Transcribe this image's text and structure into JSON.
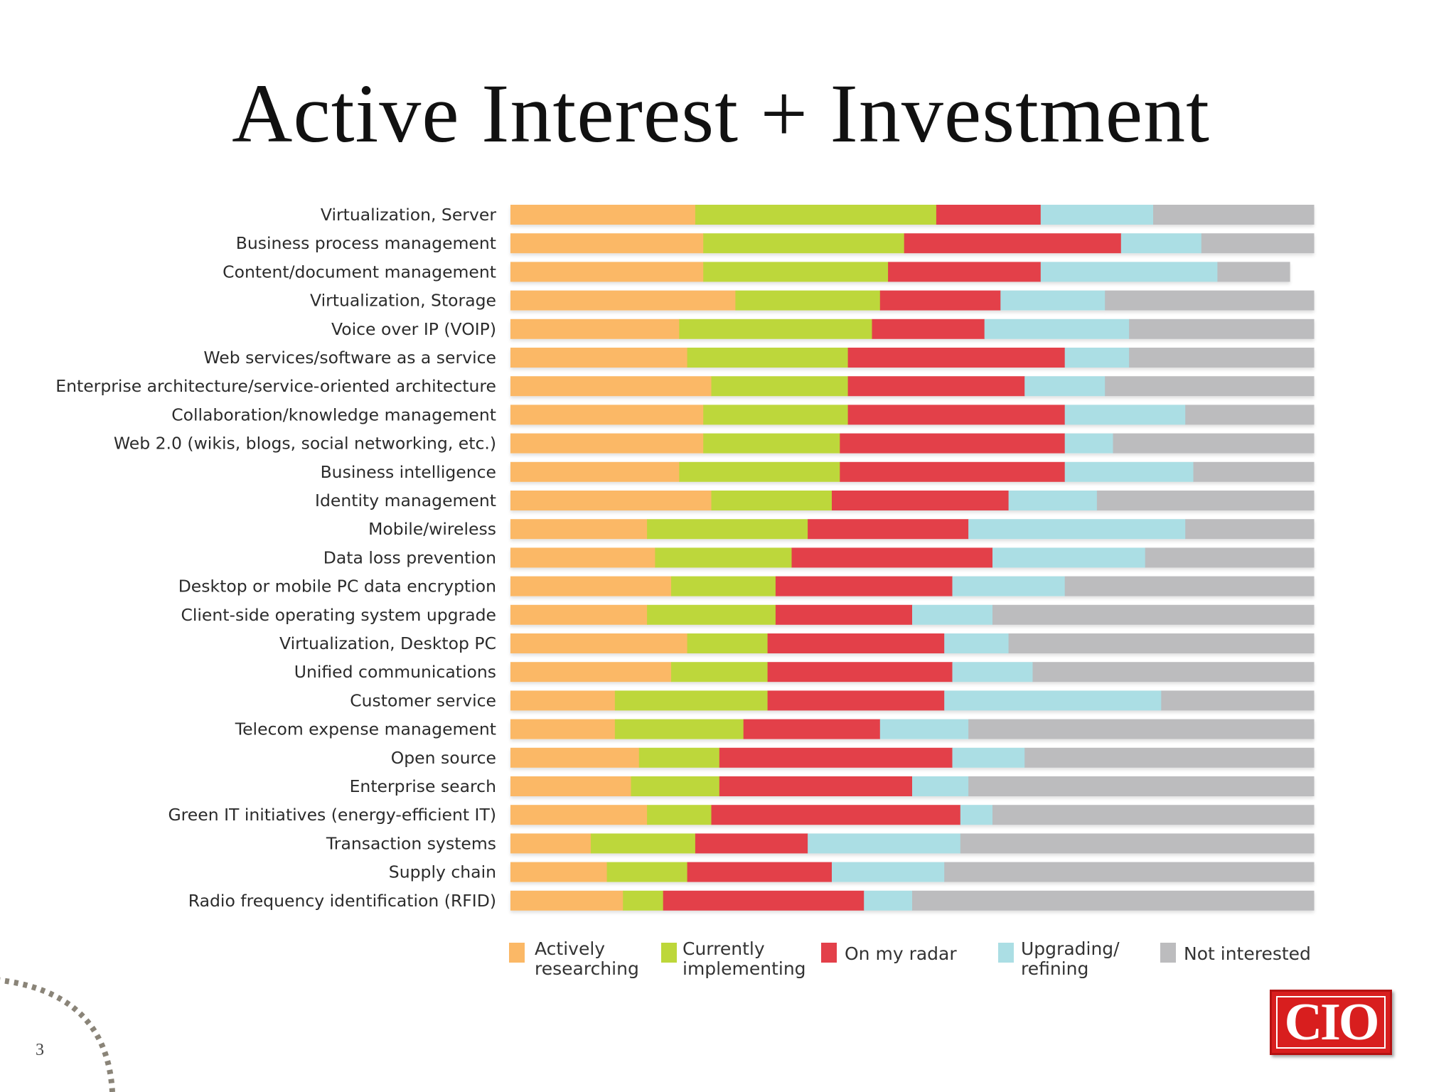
{
  "slide": {
    "title": "Active Interest + Investment",
    "page_number": "3",
    "logo_text": "CIO"
  },
  "colors": {
    "Actively researching": "#fbb866",
    "Currently implementing": "#bdd73a",
    "On my radar": "#e3404a",
    "Upgrading/ refining": "#abdee4",
    "Not interested": "#bcbcbe"
  },
  "chart_data": {
    "type": "bar",
    "orientation": "horizontal",
    "stacked": true,
    "normalized": true,
    "title": "",
    "xlabel": "",
    "ylabel": "",
    "xlim": [
      0,
      100
    ],
    "legend_position": "bottom",
    "grid": false,
    "categories": [
      "Virtualization, Server",
      "Business process management",
      "Content/document management",
      "Virtualization, Storage",
      "Voice over IP (VOIP)",
      "Web services/software as a service",
      "Enterprise architecture/service-oriented architecture",
      "Collaboration/knowledge management",
      "Web 2.0 (wikis, blogs, social networking, etc.)",
      "Business intelligence",
      "Identity management",
      "Mobile/wireless",
      "Data loss prevention",
      "Desktop or mobile PC data encryption",
      "Client-side operating system upgrade",
      "Virtualization, Desktop PC",
      "Unified communications",
      "Customer service",
      "Telecom expense management",
      "Open source",
      "Enterprise search",
      "Green IT initiatives (energy-efficient IT)",
      "Transaction systems",
      "Supply chain",
      "Radio frequency identification (RFID)"
    ],
    "series": [
      {
        "name": "Actively researching",
        "legend_label": [
          "Actively",
          "researching"
        ],
        "values": [
          23,
          24,
          24,
          28,
          21,
          22,
          25,
          24,
          24,
          21,
          25,
          17,
          18,
          20,
          17,
          22,
          20,
          13,
          13,
          16,
          15,
          17,
          10,
          12,
          14
        ]
      },
      {
        "name": "Currently implementing",
        "legend_label": [
          "Currently",
          "implementing"
        ],
        "values": [
          30,
          25,
          23,
          18,
          24,
          20,
          17,
          18,
          17,
          20,
          15,
          20,
          17,
          13,
          16,
          10,
          12,
          19,
          16,
          10,
          11,
          8,
          13,
          10,
          5
        ]
      },
      {
        "name": "On my radar",
        "legend_label": [
          "On my radar"
        ],
        "values": [
          13,
          27,
          19,
          15,
          14,
          27,
          22,
          27,
          28,
          28,
          22,
          20,
          25,
          22,
          17,
          22,
          23,
          22,
          17,
          29,
          24,
          31,
          14,
          18,
          25
        ]
      },
      {
        "name": "Upgrading/ refining",
        "legend_label": [
          "Upgrading/",
          "refining"
        ],
        "values": [
          14,
          10,
          22,
          13,
          18,
          8,
          10,
          15,
          6,
          16,
          11,
          27,
          19,
          14,
          10,
          8,
          10,
          27,
          11,
          9,
          7,
          4,
          19,
          14,
          6
        ]
      },
      {
        "name": "Not interested",
        "legend_label": [
          "Not interested"
        ],
        "values": [
          20,
          14,
          9,
          26,
          23,
          23,
          26,
          16,
          25,
          15,
          27,
          16,
          21,
          31,
          40,
          38,
          35,
          19,
          43,
          36,
          43,
          40,
          44,
          46,
          50
        ]
      }
    ]
  }
}
